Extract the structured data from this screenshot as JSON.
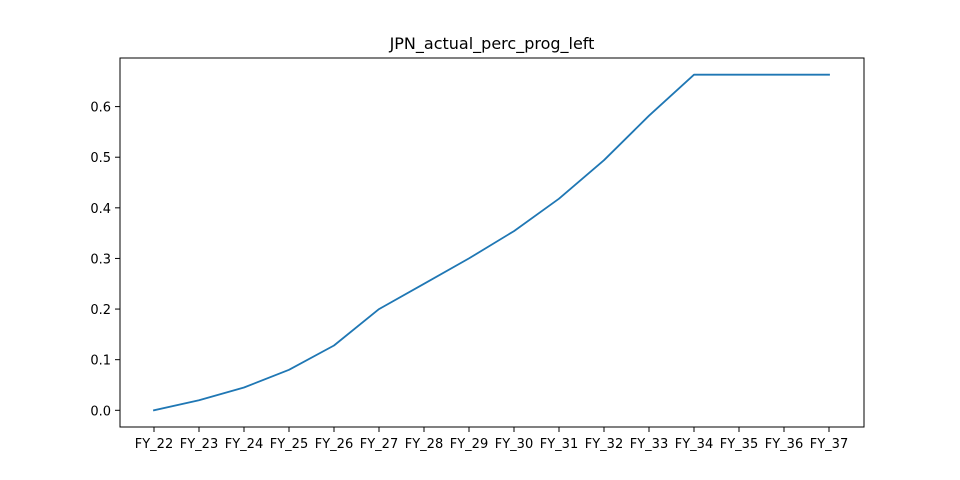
{
  "chart_data": {
    "type": "line",
    "title": "JPN_actual_perc_prog_left",
    "xlabel": "",
    "ylabel": "",
    "categories": [
      "FY_22",
      "FY_23",
      "FY_24",
      "FY_25",
      "FY_26",
      "FY_27",
      "FY_28",
      "FY_29",
      "FY_30",
      "FY_31",
      "FY_32",
      "FY_33",
      "FY_34",
      "FY_35",
      "FY_36",
      "FY_37"
    ],
    "series": [
      {
        "values": [
          0.0,
          0.02,
          0.045,
          0.08,
          0.128,
          0.2,
          0.25,
          0.3,
          0.354,
          0.418,
          0.494,
          0.582,
          0.663,
          0.663,
          0.663,
          0.663
        ],
        "color": "#1f77b4"
      }
    ],
    "yticks": [
      0.0,
      0.1,
      0.2,
      0.3,
      0.4,
      0.5,
      0.6
    ],
    "ytick_labels": [
      "0.0",
      "0.1",
      "0.2",
      "0.3",
      "0.4",
      "0.5",
      "0.6"
    ],
    "ylim": [
      -0.033,
      0.696
    ],
    "grid": false,
    "legend": "none"
  }
}
